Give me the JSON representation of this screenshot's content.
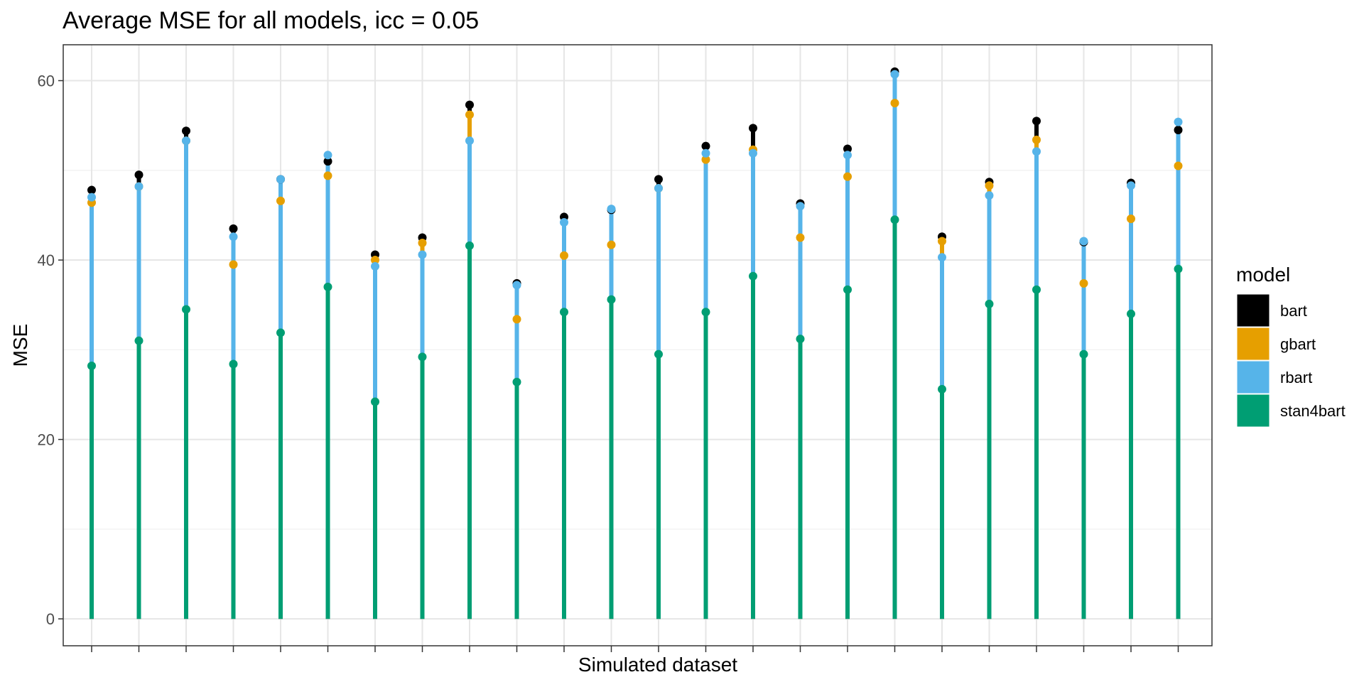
{
  "chart_data": {
    "type": "line",
    "title": "Average MSE for all models, icc = 0.05",
    "xlabel": "Simulated dataset",
    "ylabel": "MSE",
    "ylim": [
      -3,
      64
    ],
    "y_ticks": [
      0,
      20,
      40,
      60
    ],
    "grid": true,
    "legend": {
      "title": "model",
      "placement": "right"
    },
    "x": [
      1,
      2,
      3,
      4,
      5,
      6,
      7,
      8,
      9,
      10,
      11,
      12,
      13,
      14,
      15,
      16,
      17,
      18,
      19,
      20,
      21,
      22,
      23,
      24
    ],
    "series": [
      {
        "name": "bart",
        "color": "#000000",
        "values": [
          47.8,
          49.5,
          54.4,
          43.5,
          49.0,
          51.0,
          40.6,
          42.5,
          57.3,
          37.4,
          44.8,
          45.6,
          49.0,
          52.7,
          54.7,
          46.3,
          52.4,
          61.0,
          42.6,
          48.7,
          55.5,
          42.0,
          48.6,
          54.5
        ]
      },
      {
        "name": "gbart",
        "color": "#E69F00",
        "values": [
          46.4,
          48.2,
          53.3,
          39.5,
          46.6,
          49.4,
          40.0,
          41.9,
          56.2,
          33.4,
          40.5,
          41.7,
          48.0,
          51.2,
          52.3,
          42.5,
          49.3,
          57.5,
          42.1,
          48.3,
          53.4,
          37.4,
          44.6,
          50.5
        ]
      },
      {
        "name": "rbart",
        "color": "#56B4E9",
        "values": [
          47.0,
          48.2,
          53.3,
          42.6,
          49.0,
          51.7,
          39.3,
          40.6,
          53.3,
          37.2,
          44.2,
          45.7,
          48.0,
          51.9,
          51.9,
          46.0,
          51.7,
          60.7,
          40.3,
          47.2,
          52.1,
          42.1,
          48.3,
          55.4
        ]
      },
      {
        "name": "stan4bart",
        "color": "#009E73",
        "values": [
          28.2,
          31.0,
          34.5,
          28.4,
          31.9,
          37.0,
          24.2,
          29.2,
          41.6,
          26.4,
          34.2,
          35.6,
          29.5,
          34.2,
          38.2,
          31.2,
          36.7,
          44.5,
          25.6,
          35.1,
          36.7,
          29.5,
          34.0,
          39.0
        ]
      }
    ]
  }
}
